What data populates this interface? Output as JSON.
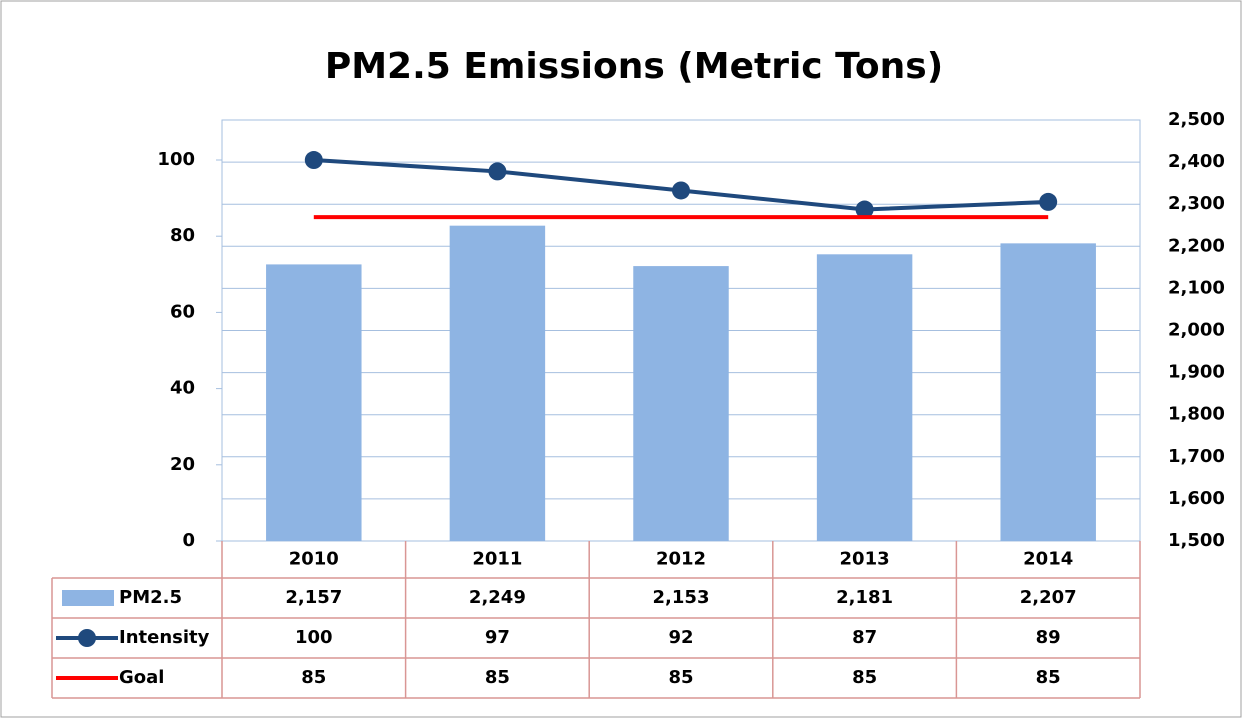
{
  "chart_data": {
    "type": "bar",
    "title": "PM2.5 Emissions (Metric Tons)",
    "categories": [
      "2010",
      "2011",
      "2012",
      "2013",
      "2014"
    ],
    "series": [
      {
        "name": "PM2.5",
        "type": "bar",
        "axis": "y2",
        "color": "#8eb4e3",
        "values": [
          2157,
          2249,
          2153,
          2181,
          2207
        ],
        "value_labels": [
          "2,157",
          "2,249",
          "2,153",
          "2,181",
          "2,207"
        ]
      },
      {
        "name": "Intensity",
        "type": "line",
        "color": "#1f497d",
        "marker": "circle",
        "values": [
          100,
          97,
          92,
          87,
          89
        ]
      },
      {
        "name": "Goal",
        "type": "line",
        "color": "#ff0000",
        "values": [
          85,
          85,
          85,
          85,
          85
        ]
      }
    ],
    "ylim": [
      0,
      110.5
    ],
    "yticks": [
      0,
      20,
      40,
      60,
      80,
      100
    ],
    "y2lim": [
      1500,
      2500
    ],
    "y2ticks": [
      {
        "value": 1500,
        "label": "1,500"
      },
      {
        "value": 1600,
        "label": "1,600"
      },
      {
        "value": 1700,
        "label": "1,700"
      },
      {
        "value": 1800,
        "label": "1,800"
      },
      {
        "value": 1900,
        "label": "1,900"
      },
      {
        "value": 2000,
        "label": "2,000"
      },
      {
        "value": 2100,
        "label": "2,100"
      },
      {
        "value": 2200,
        "label": "2,200"
      },
      {
        "value": 2300,
        "label": "2,300"
      },
      {
        "value": 2400,
        "label": "2,400"
      },
      {
        "value": 2500,
        "label": "2,500"
      }
    ],
    "grid": true,
    "data_table": true
  }
}
